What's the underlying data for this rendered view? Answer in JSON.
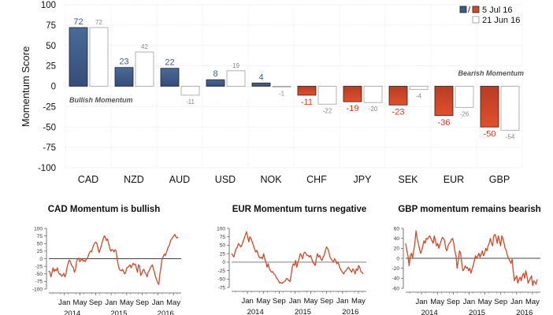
{
  "chart_data": [
    {
      "type": "bar",
      "title": "",
      "xlabel": "",
      "ylabel": "Momentum Score",
      "ylim": [
        -100,
        100
      ],
      "yticks": [
        100,
        75,
        50,
        25,
        0,
        -25,
        -50,
        -75,
        -100
      ],
      "grid": true,
      "categories": [
        "CAD",
        "NZD",
        "AUD",
        "USD",
        "NOK",
        "CHF",
        "JPY",
        "SEK",
        "EUR",
        "GBP"
      ],
      "series": [
        {
          "name": "5 Jul 16",
          "values": [
            72,
            23,
            22,
            8,
            4,
            -11,
            -19,
            -23,
            -36,
            -50
          ]
        },
        {
          "name": "21 Jun 16",
          "values": [
            72,
            42,
            -11,
            19,
            -1,
            -22,
            -20,
            -4,
            -26,
            -54
          ]
        }
      ],
      "legend": {
        "position": "top-right",
        "entries": [
          "5 Jul 16",
          "21 Jun 16"
        ]
      },
      "annotations": [
        {
          "text": "Bullish Momentum",
          "position": "left"
        },
        {
          "text": "Bearish Momentum",
          "position": "right"
        }
      ],
      "colors": {
        "positive": "#3f5a86",
        "negative": "#d0492a",
        "previous": "#ffffff",
        "previous_border": "#aaaaaa",
        "positive_label": "#3f5a86",
        "negative_label": "#d03a22",
        "previous_label": "#888888"
      }
    },
    {
      "type": "line",
      "title": "CAD Momentum is bullish",
      "ylim": [
        -100,
        100
      ],
      "yticks": [
        100,
        75,
        50,
        25,
        0,
        -25,
        -50,
        -75,
        -100
      ],
      "xticks": [
        "Jan",
        "May",
        "Sep",
        "Jan",
        "May",
        "Sep",
        "Jan",
        "May"
      ],
      "year_labels": [
        "2014",
        "2015",
        "2016"
      ],
      "x_range": [
        "2013-09",
        "2016-07"
      ],
      "color": "#d0492a",
      "series": [
        {
          "name": "CAD",
          "values": [
            -40,
            -45,
            -60,
            -45,
            -30,
            -42,
            -35,
            -40,
            -30,
            -45,
            -52,
            -50,
            -58,
            -55,
            -48,
            -60,
            -52,
            -30,
            -15,
            -5,
            -8,
            -20,
            -25,
            -30,
            -45,
            -35,
            -10,
            0,
            2,
            -10,
            -5,
            0,
            -8,
            -5,
            -10,
            -2,
            0,
            10,
            20,
            25,
            22,
            35,
            45,
            52,
            55,
            50,
            35,
            20,
            30,
            40,
            55,
            65,
            75,
            70,
            60,
            65,
            50,
            35,
            25,
            30,
            28,
            22,
            30,
            25,
            0,
            -20,
            -35,
            -38,
            -40,
            -35,
            -42,
            -50,
            -45,
            -30,
            -28,
            -25,
            -20,
            -30,
            -22,
            -15,
            -20,
            -18,
            -30,
            -45,
            -20,
            -25,
            -55,
            -50,
            -40,
            -35,
            -45,
            -50,
            -60,
            -45,
            -40,
            -30,
            -25,
            -20,
            -35,
            -45,
            -60,
            -70,
            -80,
            -85,
            -50,
            -30,
            0,
            5,
            15,
            10,
            20,
            30,
            40,
            45,
            60,
            65,
            70,
            75,
            80,
            72,
            68,
            72
          ]
        }
      ]
    },
    {
      "type": "line",
      "title": "EUR Momentum turns negative",
      "ylim": [
        -75,
        100
      ],
      "yticks": [
        100,
        75,
        50,
        25,
        0,
        -25,
        -50,
        -75
      ],
      "xticks": [
        "Jan",
        "May",
        "Sep",
        "Jan",
        "May",
        "Sep",
        "Jan",
        "May"
      ],
      "year_labels": [
        "2014",
        "2015",
        "2016"
      ],
      "x_range": [
        "2013-09",
        "2016-07"
      ],
      "color": "#d0492a",
      "series": [
        {
          "name": "EUR",
          "values": [
            25,
            20,
            15,
            30,
            40,
            45,
            55,
            50,
            45,
            50,
            60,
            70,
            80,
            90,
            75,
            60,
            75,
            70,
            60,
            50,
            40,
            30,
            35,
            25,
            15,
            12,
            15,
            10,
            25,
            10,
            0,
            -15,
            -5,
            -20,
            -25,
            -30,
            -28,
            -35,
            -38,
            -45,
            -50,
            -55,
            -62,
            -60,
            -63,
            -60,
            -58,
            -55,
            -48,
            -50,
            -55,
            -58,
            -40,
            -15,
            -5,
            -10,
            5,
            -15,
            0,
            10,
            25,
            20,
            10,
            25,
            30,
            25,
            20,
            20,
            15,
            20,
            10,
            0,
            -5,
            -10,
            10,
            25,
            15,
            20,
            10,
            5,
            15,
            20,
            35,
            45,
            40,
            30,
            15,
            10,
            5,
            0,
            10,
            5,
            -5,
            0,
            -10,
            -20,
            -25,
            -30,
            -35,
            -28,
            -25,
            -20,
            -15,
            -20,
            -25,
            -30,
            -20,
            -25,
            -35,
            -20,
            -25,
            -10,
            -15,
            -28,
            -30,
            -35
          ]
        }
      ]
    },
    {
      "type": "line",
      "title": "GBP momentum remains bearish",
      "ylim": [
        -60,
        60
      ],
      "yticks": [
        60,
        40,
        20,
        0,
        -20,
        -40,
        -60
      ],
      "xticks": [
        "Jan",
        "May",
        "Sep",
        "Jan",
        "May",
        "Sep",
        "Jan",
        "May"
      ],
      "year_labels": [
        "2014",
        "2015",
        "2016"
      ],
      "x_range": [
        "2013-09",
        "2016-07"
      ],
      "color": "#d0492a",
      "series": [
        {
          "name": "GBP",
          "values": [
            30,
            15,
            5,
            -15,
            5,
            10,
            0,
            15,
            30,
            55,
            40,
            30,
            20,
            10,
            15,
            25,
            35,
            30,
            40,
            38,
            42,
            45,
            40,
            35,
            30,
            45,
            35,
            25,
            30,
            20,
            28,
            35,
            42,
            40,
            35,
            20,
            15,
            25,
            30,
            32,
            38,
            40,
            30,
            15,
            5,
            -20,
            -5,
            15,
            10,
            -10,
            -25,
            -22,
            -15,
            -20,
            -18,
            -25,
            -20,
            -30,
            -22,
            -15,
            -5,
            5,
            0,
            5,
            10,
            2,
            8,
            15,
            5,
            10,
            20,
            15,
            25,
            30,
            40,
            30,
            25,
            45,
            48,
            42,
            30,
            45,
            35,
            25,
            45,
            40,
            30,
            20,
            15,
            5,
            0,
            -5,
            -10,
            -2,
            -25,
            -45,
            -40,
            -35,
            -50,
            -42,
            -38,
            -45,
            -35,
            -30,
            -40,
            -25,
            -35,
            -50,
            -45,
            -40,
            -35,
            -55,
            -45,
            -48,
            -52,
            -42
          ]
        }
      ]
    }
  ]
}
